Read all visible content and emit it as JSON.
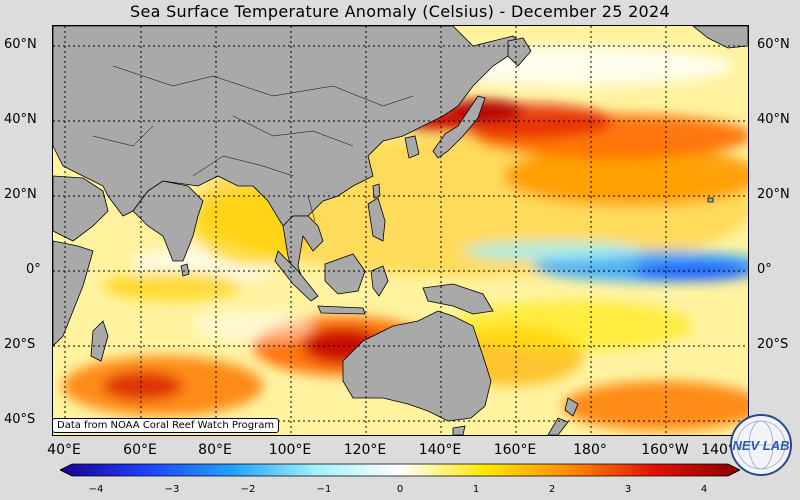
{
  "title": "Sea Surface Temperature Anomaly (Celsius) - December 25 2024",
  "latitude_labels": [
    "60°N",
    "40°N",
    "20°N",
    "0°",
    "20°S",
    "40°S"
  ],
  "longitude_labels": [
    "40°E",
    "60°E",
    "80°E",
    "100°E",
    "120°E",
    "140°E",
    "160°E",
    "180°",
    "160°W",
    "140°W"
  ],
  "credit": "Data from NOAA Coral Reef Watch Program",
  "colorbar": {
    "ticks": [
      "−4",
      "−3",
      "−2",
      "−1",
      "0",
      "1",
      "2",
      "3",
      "4"
    ],
    "min": -4,
    "max": 4,
    "colors": [
      "#1a0090",
      "#1f3fff",
      "#1fa0ff",
      "#9ff0ff",
      "#ffffff",
      "#ffe800",
      "#ff8a00",
      "#e41000",
      "#8b0000"
    ]
  },
  "logo_text": "NEV LAB",
  "colors": {
    "land": "#a9a9a9",
    "warm": "#ff9a00",
    "hot": "#c40000",
    "cool": "#6ad6ff"
  }
}
